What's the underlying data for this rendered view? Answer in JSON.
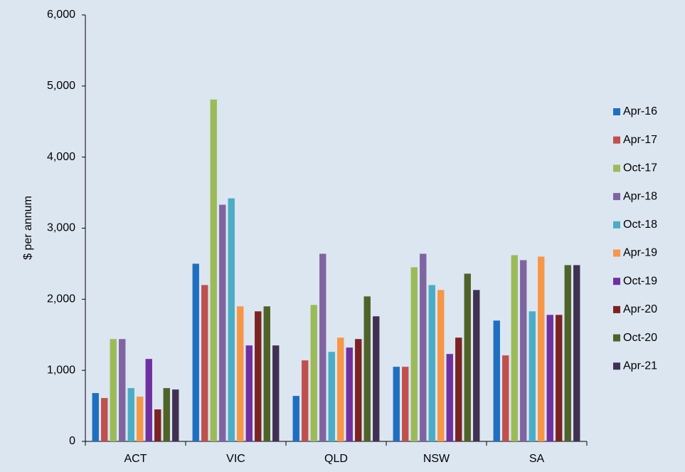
{
  "chart_data": {
    "type": "bar",
    "ylabel": "$ per annum",
    "categories": [
      "ACT",
      "VIC",
      "QLD",
      "NSW",
      "SA"
    ],
    "series": [
      {
        "name": "Apr-16",
        "color": "#1f6fc0",
        "values": [
          680,
          2500,
          640,
          1050,
          1700
        ]
      },
      {
        "name": "Apr-17",
        "color": "#c0504d",
        "values": [
          610,
          2200,
          1140,
          1050,
          1210
        ]
      },
      {
        "name": "Oct-17",
        "color": "#9bbb59",
        "values": [
          1440,
          4810,
          1920,
          2450,
          2620
        ]
      },
      {
        "name": "Apr-18",
        "color": "#8064a2",
        "values": [
          1440,
          3330,
          2640,
          2640,
          2550
        ]
      },
      {
        "name": "Oct-18",
        "color": "#4bacc6",
        "values": [
          750,
          3420,
          1260,
          2200,
          1830
        ]
      },
      {
        "name": "Apr-19",
        "color": "#f79646",
        "values": [
          630,
          1900,
          1460,
          2130,
          2600
        ]
      },
      {
        "name": "Oct-19",
        "color": "#7030a0",
        "values": [
          1160,
          1350,
          1320,
          1230,
          1780
        ]
      },
      {
        "name": "Apr-20",
        "color": "#7b2323",
        "values": [
          450,
          1830,
          1440,
          1460,
          1780
        ]
      },
      {
        "name": "Oct-20",
        "color": "#4f6228",
        "values": [
          750,
          1900,
          2040,
          2360,
          2480
        ]
      },
      {
        "name": "Apr-21",
        "color": "#403152",
        "values": [
          730,
          1350,
          1760,
          2130,
          2480
        ]
      }
    ],
    "ylim": [
      0,
      6000
    ],
    "yticks": [
      0,
      {
        "value": 1000,
        "label": "1,000"
      },
      {
        "value": 2000,
        "label": "2,000"
      },
      {
        "value": 3000,
        "label": "3,000"
      },
      {
        "value": 4000,
        "label": "4,000"
      },
      {
        "value": 5000,
        "label": "5,000"
      },
      {
        "value": 6000,
        "label": "6,000"
      }
    ],
    "legend": "right"
  }
}
